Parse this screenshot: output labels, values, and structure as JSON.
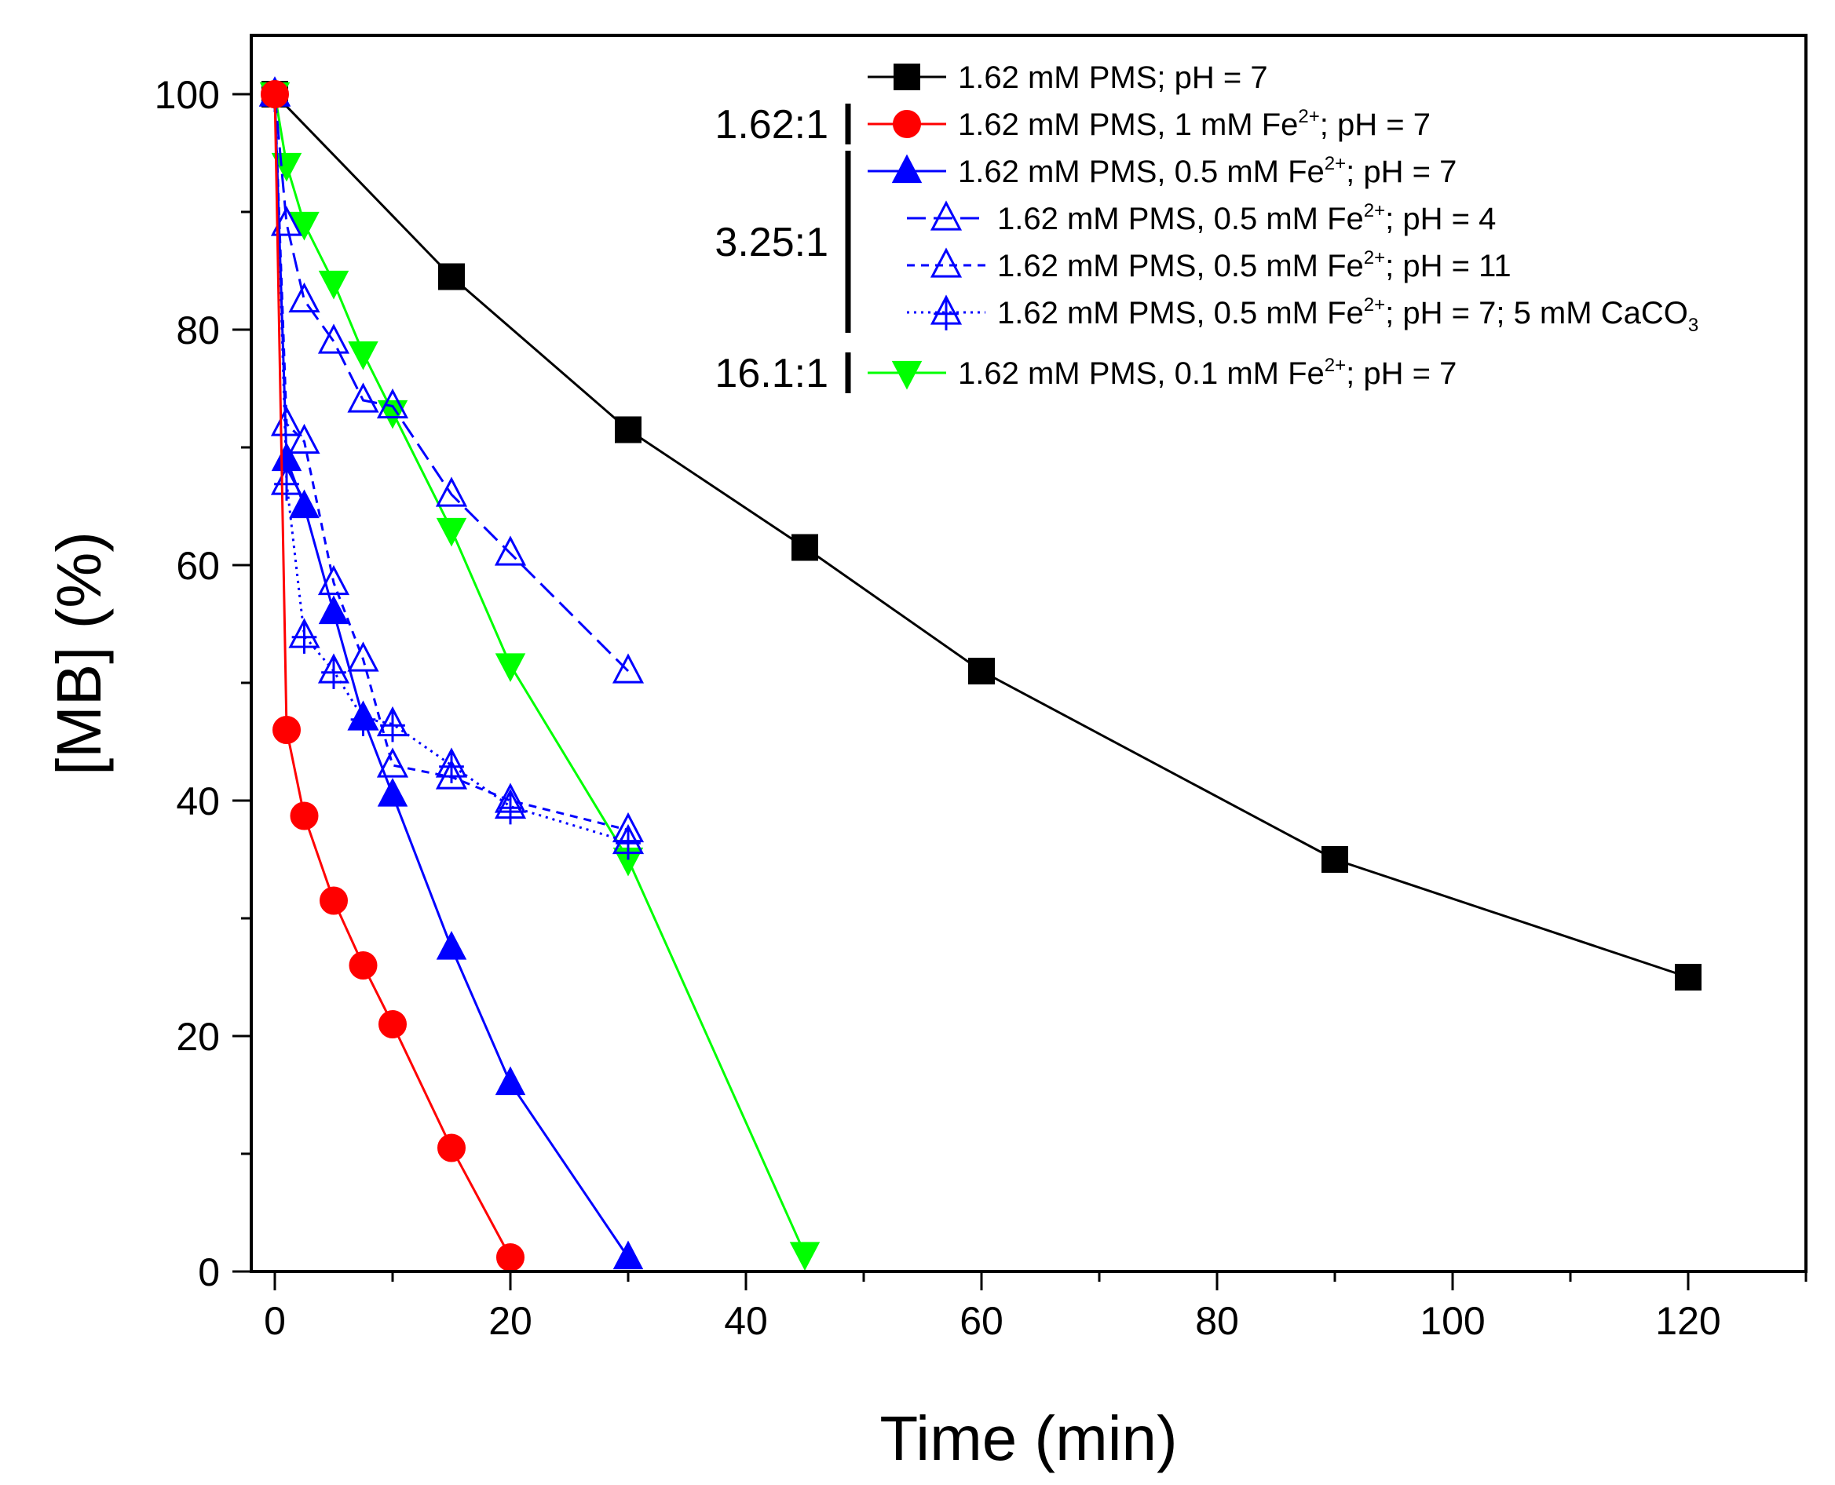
{
  "chart_data": {
    "type": "line",
    "title": "",
    "xlabel": "Time (min)",
    "ylabel": "[MB] (%)",
    "xlim": [
      -2,
      130
    ],
    "ylim": [
      0,
      105
    ],
    "xticks": [
      0,
      20,
      40,
      60,
      80,
      100,
      120
    ],
    "yticks": [
      0,
      20,
      40,
      60,
      80,
      100
    ],
    "xtick_labels": [
      "0",
      "20",
      "40",
      "60",
      "80",
      "100",
      "120"
    ],
    "ytick_labels": [
      "0",
      "20",
      "40",
      "60",
      "80",
      "100"
    ],
    "legend_position": "top-right",
    "series": [
      {
        "name": "1.62 mM PMS; pH = 7",
        "label_parts": [
          "1.62 mM PMS; pH = 7"
        ],
        "color": "#000000",
        "marker": "square",
        "filled": true,
        "line": "solid",
        "x": [
          0,
          15,
          30,
          45,
          60,
          90,
          120
        ],
        "values": [
          100,
          84.5,
          71.5,
          61.5,
          51,
          35,
          25
        ]
      },
      {
        "name": "1.62 mM PMS, 1 mM Fe2+; pH = 7",
        "label_parts": [
          "1.62 mM PMS, 1 mM Fe",
          "2+",
          "; pH = 7"
        ],
        "color": "#ff0000",
        "marker": "circle",
        "filled": true,
        "line": "solid",
        "x": [
          0,
          1,
          2.5,
          5,
          7.5,
          10,
          15,
          20
        ],
        "values": [
          100,
          46,
          38.7,
          31.5,
          26,
          21,
          10.5,
          1.2
        ]
      },
      {
        "name": "1.62 mM PMS, 0.5 mM Fe2+; pH = 7",
        "label_parts": [
          "1.62 mM PMS, 0.5 mM Fe",
          "2+",
          "; pH = 7"
        ],
        "color": "#0000ff",
        "marker": "triangle-up",
        "filled": true,
        "line": "solid",
        "x": [
          0,
          1,
          2.5,
          5,
          7.5,
          10,
          15,
          20,
          30
        ],
        "values": [
          100,
          69,
          65,
          56,
          47,
          40.5,
          27.5,
          16,
          1.2
        ]
      },
      {
        "name": "1.62 mM PMS, 0.5 mM Fe2+; pH = 4",
        "label_parts": [
          "1.62 mM PMS, 0.5 mM Fe",
          "2+",
          "; pH = 4"
        ],
        "color": "#0000ff",
        "marker": "triangle-up",
        "filled": false,
        "line": "dashed",
        "x": [
          0,
          1,
          2.5,
          5,
          7.5,
          10,
          15,
          20,
          30
        ],
        "values": [
          100,
          89,
          82.5,
          79,
          74,
          73.5,
          66,
          61,
          51
        ]
      },
      {
        "name": "1.62 mM PMS, 0.5 mM Fe2+; pH = 11",
        "label_parts": [
          "1.62 mM PMS, 0.5 mM Fe",
          "2+",
          "; pH = 11"
        ],
        "color": "#0000ff",
        "marker": "triangle-up",
        "filled": false,
        "line": "short-dashed",
        "x": [
          0,
          1,
          2.5,
          5,
          7.5,
          10,
          15,
          20,
          30
        ],
        "values": [
          100,
          72,
          70.5,
          58.5,
          52,
          43,
          42,
          40,
          37.5
        ]
      },
      {
        "name": "1.62 mM PMS, 0.5 mM Fe2+; pH = 7; 5 mM CaCO3",
        "label_parts": [
          "1.62 mM PMS, 0.5 mM Fe",
          "2+",
          "; pH = 7; 5 mM CaCO",
          "3",
          ""
        ],
        "color": "#0000ff",
        "marker": "triangle-up-cross",
        "filled": false,
        "line": "dotted",
        "x": [
          0,
          1,
          2.5,
          5,
          7.5,
          10,
          15,
          20,
          30
        ],
        "values": [
          100,
          67,
          54,
          51,
          47,
          46.5,
          43,
          39.5,
          36.5
        ]
      },
      {
        "name": "1.62 mM PMS, 0.1 mM Fe2+; pH = 7",
        "label_parts": [
          "1.62 mM PMS, 0.1 mM Fe",
          "2+",
          "; pH = 7"
        ],
        "color": "#00ff00",
        "marker": "triangle-down",
        "filled": true,
        "line": "solid",
        "x": [
          0,
          1,
          2.5,
          5,
          7.5,
          10,
          15,
          20,
          30,
          45
        ],
        "values": [
          100,
          94,
          89,
          84,
          78,
          73,
          63,
          51.5,
          35,
          1.5
        ]
      }
    ],
    "ratio_annotations": [
      {
        "label": "1.62:1",
        "series_from": 1,
        "series_to": 1
      },
      {
        "label": "3.25:1",
        "series_from": 2,
        "series_to": 5
      },
      {
        "label": "16.1:1",
        "series_from": 6,
        "series_to": 6
      }
    ]
  }
}
